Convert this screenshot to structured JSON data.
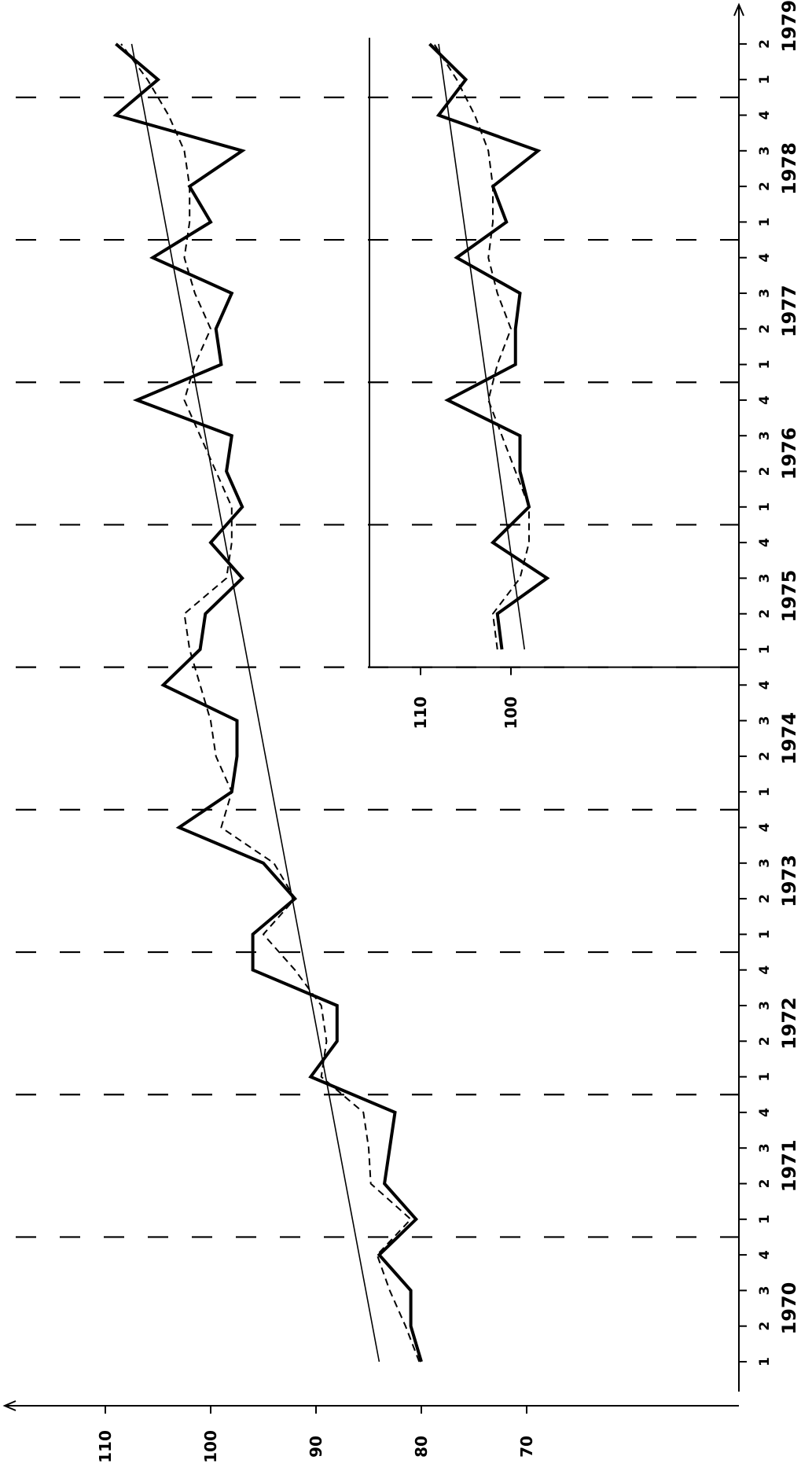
{
  "chart_data": [
    {
      "type": "line",
      "x_axis": {
        "quarters": [
          "1",
          "2",
          "3",
          "4",
          "1",
          "2",
          "3",
          "4",
          "1",
          "2",
          "3",
          "4",
          "1",
          "2",
          "3",
          "4",
          "1",
          "2",
          "3",
          "4",
          "1",
          "2",
          "3",
          "4",
          "1",
          "2",
          "3",
          "4",
          "1",
          "2",
          "3",
          "4",
          "1",
          "2",
          "3",
          "4",
          "1",
          "2"
        ],
        "years": [
          {
            "label": "1970",
            "start_index": 0
          },
          {
            "label": "1971",
            "start_index": 4
          },
          {
            "label": "1972",
            "start_index": 8
          },
          {
            "label": "1973",
            "start_index": 12
          },
          {
            "label": "1974",
            "start_index": 16
          },
          {
            "label": "1975",
            "start_index": 20
          },
          {
            "label": "1976",
            "start_index": 24
          },
          {
            "label": "1977",
            "start_index": 28
          },
          {
            "label": "1978",
            "start_index": 32
          },
          {
            "label": "1979",
            "start_index": 36
          }
        ]
      },
      "y_axis": {
        "ticks": [
          "70",
          "80",
          "90",
          "100",
          "110"
        ],
        "tick_values": [
          70,
          80,
          90,
          100,
          110
        ],
        "ylim": [
          63,
          121
        ]
      },
      "grid": "vertical dashed at year boundaries",
      "series": [
        {
          "style": "solid-bold",
          "values": [
            80,
            81,
            81,
            84,
            80.5,
            83.5,
            83,
            82.5,
            90.5,
            88,
            88,
            96,
            96,
            92,
            95,
            103,
            98,
            97.5,
            97.5,
            104.5,
            101,
            100.5,
            97,
            100,
            97,
            98.5,
            98,
            107,
            99,
            99.5,
            98,
            105.5,
            100,
            102,
            97,
            109,
            105,
            109
          ]
        },
        {
          "style": "dashed",
          "values": [
            80.2,
            81.5,
            83,
            84.2,
            81,
            84.8,
            85,
            85.5,
            89.5,
            89,
            89.5,
            92,
            95,
            92,
            94,
            99,
            98,
            99.5,
            100,
            101,
            102,
            102.5,
            98.5,
            98,
            98,
            99.5,
            101,
            102.5,
            101.5,
            100,
            101.5,
            102.5,
            102,
            102,
            102.5,
            104,
            106,
            108.5
          ]
        },
        {
          "style": "trend",
          "values": [
            84,
            107.5
          ]
        }
      ]
    },
    {
      "type": "line",
      "x_axis": {
        "start_label": "1975 Q1",
        "end_label": "1979 Q2"
      },
      "y_axis": {
        "ticks": [
          "100",
          "110"
        ],
        "tick_values": [
          100,
          110
        ],
        "ylim": [
          86,
          117
        ]
      },
      "series": [
        {
          "style": "solid-bold",
          "values": [
            101,
            101.5,
            96,
            102,
            98,
            99,
            99,
            107,
            99.5,
            99.5,
            99,
            106,
            100.5,
            102,
            97,
            108,
            105,
            109
          ]
        },
        {
          "style": "dashed",
          "values": [
            101.5,
            102,
            99,
            98,
            98,
            99.5,
            101,
            102.5,
            101.5,
            100,
            101.5,
            102.5,
            102,
            102,
            102.5,
            104,
            106,
            108.5
          ]
        },
        {
          "style": "trend",
          "values": [
            98.5,
            108
          ]
        }
      ]
    }
  ]
}
